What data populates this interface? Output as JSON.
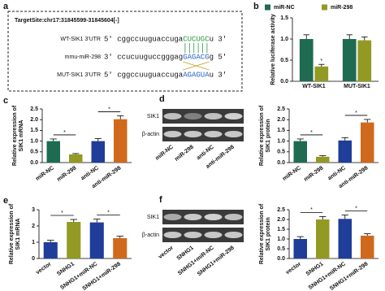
{
  "panel_labels": [
    "a",
    "b",
    "c",
    "d",
    "e",
    "f"
  ],
  "sequence": {
    "title": "TargetSite:chr17:31845599-31845604[-]",
    "rows": [
      {
        "name": "WT-SIK1 3'UTR",
        "five": "5'",
        "seq": "cggccuuguaccuga",
        "site": "CUCUGC",
        "tail": "u",
        "three": "3'",
        "color": "#2a9a3a"
      },
      {
        "name": "mmu-miR-298",
        "five": "3'",
        "seq": "ccucuuguccgggag",
        "site": "GAGACG",
        "tail": "g",
        "three": "5'",
        "color": "#1f5fbf"
      },
      {
        "name": "MUT-SIK1 3'UTR",
        "five": "5'",
        "seq": "cggccuuguaccuga",
        "site": "AGAGUA",
        "tail": "u",
        "three": "3'",
        "color": "#1f5fbf"
      }
    ]
  },
  "blots": [
    {
      "bands": [
        "SIK1",
        "β-actin"
      ],
      "lanes": [
        "miR-NC",
        "miR-298",
        "anti-NC",
        "anti-miR-298"
      ]
    },
    {
      "bands": [
        "SIK1",
        "β-actin"
      ],
      "lanes": [
        "vector",
        "SNHG1",
        "SNHG1+miR-NC",
        "SNHG1+miR-298"
      ]
    }
  ],
  "chart_data": [
    {
      "type": "grouped_bar",
      "ylabel": [
        "Relative luciferase activity"
      ],
      "categories": [
        "WT-SIK1",
        "MUT-SIK1"
      ],
      "series": [
        {
          "name": "miR-NC",
          "color": "#1e6b52",
          "values": [
            1.0,
            1.0
          ],
          "errors": [
            0.1,
            0.1
          ]
        },
        {
          "name": "miR-298",
          "color": "#939a24",
          "values": [
            0.35,
            0.97
          ],
          "errors": [
            0.05,
            0.08
          ]
        }
      ],
      "annotations": [
        {
          "label": "*",
          "category": "WT-SIK1",
          "series": "miR-298"
        }
      ],
      "ylim": [
        0,
        1.5
      ],
      "yticks": [
        {
          "value": 0,
          "label": "0.0"
        },
        {
          "value": 0.5,
          "label": "0.5"
        },
        {
          "value": 1,
          "label": "1.0"
        },
        {
          "value": 1.5,
          "label": "1.5"
        }
      ],
      "legend": "top"
    },
    {
      "type": "bar",
      "ylabel": [
        "Relative expression of",
        "SIK1 mRNA"
      ],
      "categories": [
        "miR-NC",
        "miR-298",
        "anti-NC",
        "anti-miR-298"
      ],
      "values": [
        1.0,
        0.38,
        1.0,
        2.02
      ],
      "errors": [
        0.1,
        0.04,
        0.12,
        0.16
      ],
      "colors": [
        "#1e6b52",
        "#939a24",
        "#1f3d99",
        "#d0691c"
      ],
      "annotations": [
        {
          "label": "*",
          "between": [
            "miR-NC",
            "miR-298"
          ]
        },
        {
          "label": "*",
          "between": [
            "anti-NC",
            "anti-miR-298"
          ]
        }
      ],
      "ylim": [
        0,
        2.5
      ],
      "yticks": [
        {
          "value": 0,
          "label": "0.0"
        },
        {
          "value": 0.5,
          "label": "0.5"
        },
        {
          "value": 1,
          "label": "1.0"
        },
        {
          "value": 1.5,
          "label": "1.5"
        },
        {
          "value": 2,
          "label": "2.0"
        },
        {
          "value": 2.5,
          "label": "2.5"
        }
      ]
    },
    {
      "type": "bar",
      "ylabel": [
        "Relative expression of",
        "SIK1 protein"
      ],
      "categories": [
        "miR-NC",
        "miR-298",
        "anti-NC",
        "anti-miR-298"
      ],
      "values": [
        1.0,
        0.27,
        1.03,
        1.87
      ],
      "errors": [
        0.1,
        0.05,
        0.13,
        0.14
      ],
      "colors": [
        "#1e6b52",
        "#939a24",
        "#1f3d99",
        "#d0691c"
      ],
      "annotations": [
        {
          "label": "*",
          "between": [
            "miR-NC",
            "miR-298"
          ]
        },
        {
          "label": "*",
          "between": [
            "anti-NC",
            "anti-miR-298"
          ]
        }
      ],
      "ylim": [
        0,
        2.5
      ],
      "yticks": [
        {
          "value": 0,
          "label": "0.0"
        },
        {
          "value": 0.5,
          "label": "0.5"
        },
        {
          "value": 1,
          "label": "1.0"
        },
        {
          "value": 1.5,
          "label": "1.5"
        },
        {
          "value": 2,
          "label": "2.0"
        },
        {
          "value": 2.5,
          "label": "2.5"
        }
      ]
    },
    {
      "type": "bar",
      "ylabel": [
        "Relative expression of",
        "SIK1 mRNA"
      ],
      "categories": [
        "vector",
        "SNHG1",
        "SNHG1+miR-NC",
        "SNHG1+miR-298"
      ],
      "values": [
        1.0,
        2.25,
        2.22,
        1.25
      ],
      "errors": [
        0.12,
        0.15,
        0.2,
        0.12
      ],
      "colors": [
        "#1f3d99",
        "#939a24",
        "#1f3d99",
        "#d0691c"
      ],
      "annotations": [
        {
          "label": "*",
          "between": [
            "vector",
            "SNHG1"
          ]
        },
        {
          "label": "*",
          "between": [
            "SNHG1+miR-NC",
            "SNHG1+miR-298"
          ]
        }
      ],
      "ylim": [
        0,
        3
      ],
      "yticks": [
        0,
        1,
        2,
        3
      ]
    },
    {
      "type": "bar",
      "ylabel": [
        "Relative expression of",
        "SIK1 protein"
      ],
      "categories": [
        "vector",
        "SNHG1",
        "SNHG1+miR-NC",
        "SNHG1+miR-298"
      ],
      "values": [
        1.0,
        2.0,
        2.03,
        1.17
      ],
      "errors": [
        0.12,
        0.15,
        0.2,
        0.1
      ],
      "colors": [
        "#1f3d99",
        "#939a24",
        "#1f3d99",
        "#d0691c"
      ],
      "annotations": [
        {
          "label": "*",
          "between": [
            "vector",
            "SNHG1"
          ]
        },
        {
          "label": "*",
          "between": [
            "SNHG1+miR-NC",
            "SNHG1+miR-298"
          ]
        }
      ],
      "ylim": [
        0,
        2.5
      ],
      "yticks": [
        {
          "value": 0,
          "label": "0.0"
        },
        {
          "value": 0.5,
          "label": "0.5"
        },
        {
          "value": 1,
          "label": "1.0"
        },
        {
          "value": 1.5,
          "label": "1.5"
        },
        {
          "value": 2,
          "label": "2.0"
        },
        {
          "value": 2.5,
          "label": "2.5"
        }
      ]
    }
  ]
}
